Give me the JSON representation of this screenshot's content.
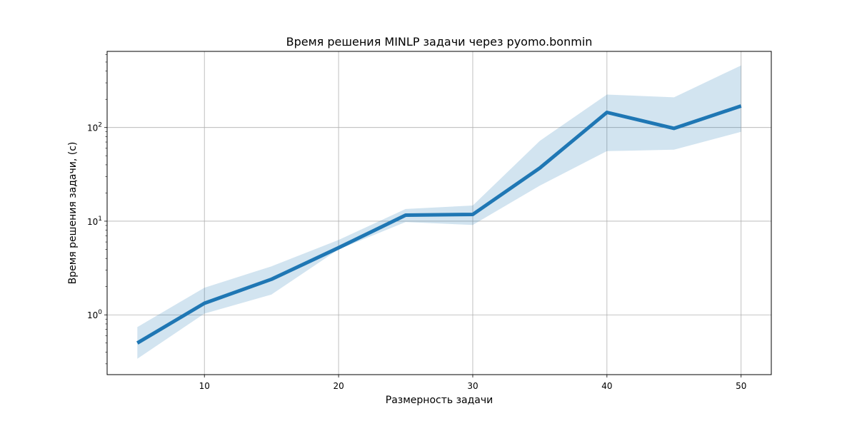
{
  "chart_data": {
    "type": "line",
    "title": "Время решения MINLP задачи через pyomo.bonmin",
    "xlabel": "Размерность задачи",
    "ylabel": "Время решения задачи, (с)",
    "yscale": "log",
    "xlim": [
      2.75,
      52.25
    ],
    "ylim": [
      0.23,
      650
    ],
    "x_ticks": [
      10,
      20,
      30,
      40,
      50
    ],
    "y_ticks": [
      {
        "value": 1,
        "base": "10",
        "exp": "0"
      },
      {
        "value": 10,
        "base": "10",
        "exp": "1"
      },
      {
        "value": 100,
        "base": "10",
        "exp": "2"
      }
    ],
    "grid": true,
    "series": [
      {
        "x": [
          5,
          10,
          15,
          20,
          25,
          30,
          35,
          40,
          45,
          50
        ],
        "values": [
          0.5,
          1.33,
          2.4,
          5.2,
          11.6,
          11.8,
          37,
          145,
          98,
          170
        ],
        "band_upper": [
          0.74,
          1.95,
          3.3,
          6.3,
          13.5,
          14.7,
          72,
          225,
          210,
          460
        ],
        "band_lower": [
          0.34,
          1.03,
          1.65,
          5.0,
          9.8,
          9.1,
          24,
          56,
          58,
          90
        ],
        "color": "#1f77b4",
        "band_color": "#1f77b4"
      }
    ]
  }
}
